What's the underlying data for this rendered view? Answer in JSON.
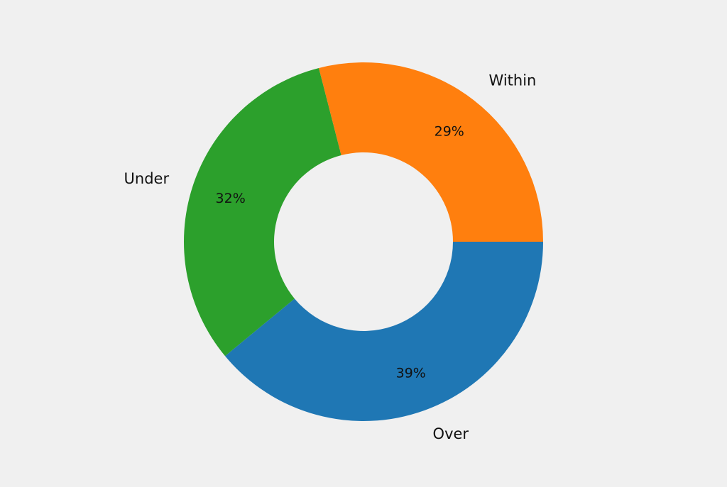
{
  "chart_data": {
    "type": "pie",
    "donut": true,
    "categories": [
      "Over",
      "Under",
      "Within"
    ],
    "values": [
      39,
      32,
      29
    ],
    "value_labels": [
      "39%",
      "32%",
      "29%"
    ],
    "colors": [
      "#1f77b4",
      "#2ca02c",
      "#ff7f0e"
    ],
    "start_angle_deg": 0,
    "direction": "clockwise",
    "legend": "none",
    "title": ""
  }
}
